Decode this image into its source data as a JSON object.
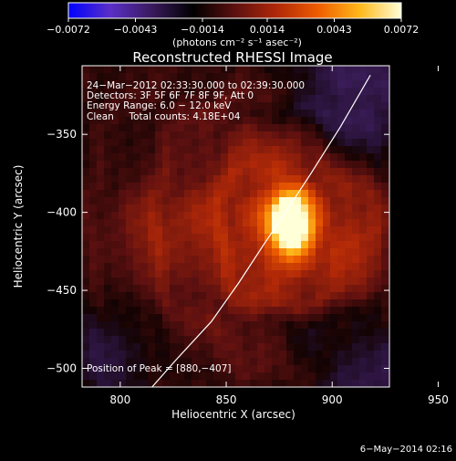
{
  "chart_data": {
    "type": "heatmap",
    "title": "Reconstructed RHESSI Image",
    "xlabel": "Heliocentric X (arcsec)",
    "ylabel": "Heliocentric Y (arcsec)",
    "xlim": [
      782,
      927
    ],
    "ylim": [
      -512,
      -306
    ],
    "x_ticks": [
      800,
      850,
      900,
      950
    ],
    "x_tick_labels": [
      "800",
      "850",
      "900",
      "950"
    ],
    "y_ticks": [
      -350,
      -400,
      -450,
      -500
    ],
    "y_tick_labels": [
      "−350",
      "−400",
      "−450",
      "−500"
    ],
    "colorbar": {
      "min": -0.0072,
      "max": 0.0072,
      "ticks": [
        -0.0072,
        -0.0043,
        -0.0014,
        0.0014,
        0.0043,
        0.0072
      ],
      "tick_labels": [
        "−0.0072",
        "−0.0043",
        "−0.0014",
        "0.0014",
        "0.0043",
        "0.0072"
      ],
      "unit_label": "(photons cm⁻² s⁻¹ asec⁻²)",
      "colors": [
        "#0000ff",
        "#5a2fc8",
        "#3a1a5e",
        "#000000",
        "#5c1010",
        "#b02808",
        "#ee5c00",
        "#ffb81a",
        "#ffffd8"
      ]
    },
    "annotations": [
      "24−Mar−2012 02:33:30.000 to 02:39:30.000",
      "Detectors: 3F 5F 6F 7F 8F 9F, Att 0",
      "Energy Range: 6.0 − 12.0 keV",
      "Clean     Total counts: 4.18E+04"
    ],
    "peak_label": "Position of Peak = [880,−407]",
    "peak": {
      "x": 880,
      "y": -407,
      "value": 0.0072
    },
    "limb_line": [
      [
        815,
        -512
      ],
      [
        826,
        -495
      ],
      [
        843,
        -470
      ],
      [
        856,
        -445
      ],
      [
        868,
        -420
      ],
      [
        878,
        -400
      ],
      [
        890,
        -375
      ],
      [
        904,
        -345
      ],
      [
        918,
        -312
      ]
    ],
    "timestamp": "6−May−2014 02:16"
  }
}
